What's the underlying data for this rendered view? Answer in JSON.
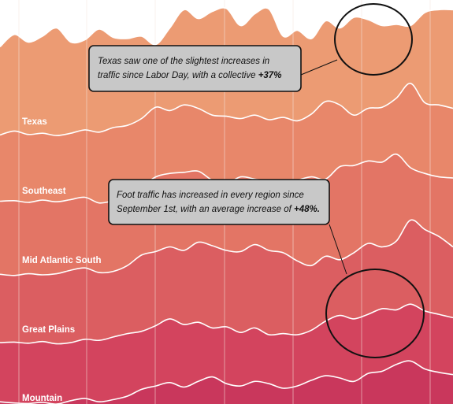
{
  "chart_data": {
    "type": "area",
    "description_style": "stacked ridgeline of foot traffic by region",
    "colors": {
      "band_0": "#ec9b73",
      "band_1": "#e8876a",
      "band_2": "#e37565",
      "band_3": "#db5e61",
      "band_4": "#d3445e",
      "band_5": "#c9375c",
      "gridline": "#f6e3dc",
      "label": "#ffffff"
    },
    "series": [
      {
        "name": "",
        "values": [
          0.34,
          0.55,
          0.42,
          0.52,
          0.66,
          0.42,
          0.46,
          0.64,
          0.5,
          0.48,
          0.52,
          0.38,
          0.66,
          0.97,
          0.82,
          0.94,
          0.99,
          0.7,
          0.9,
          0.98,
          0.52,
          0.62,
          0.48,
          0.78,
          0.66,
          0.84,
          0.8,
          0.7,
          0.72,
          0.7,
          0.92,
          0.97,
          0.97
        ]
      },
      {
        "name": "Texas",
        "values": [
          0.05,
          0.12,
          0.06,
          0.08,
          0.04,
          0.08,
          0.14,
          0.1,
          0.18,
          0.22,
          0.34,
          0.54,
          0.48,
          0.58,
          0.52,
          0.4,
          0.38,
          0.34,
          0.4,
          0.32,
          0.36,
          0.3,
          0.42,
          0.64,
          0.58,
          0.4,
          0.52,
          0.54,
          0.7,
          0.96,
          0.62,
          0.58,
          0.52
        ]
      },
      {
        "name": "Southeast",
        "values": [
          0.09,
          0.1,
          0.07,
          0.11,
          0.08,
          0.12,
          0.16,
          0.06,
          0.1,
          0.18,
          0.34,
          0.52,
          0.58,
          0.6,
          0.62,
          0.46,
          0.4,
          0.52,
          0.48,
          0.44,
          0.4,
          0.46,
          0.52,
          0.48,
          0.7,
          0.72,
          0.8,
          0.78,
          0.92,
          0.68,
          0.58,
          0.52,
          0.5
        ]
      },
      {
        "name": "Mid Atlantic South",
        "values": [
          0.05,
          0.03,
          0.06,
          0.04,
          0.06,
          0.12,
          0.16,
          0.08,
          0.1,
          0.2,
          0.38,
          0.44,
          0.52,
          0.46,
          0.6,
          0.54,
          0.46,
          0.44,
          0.56,
          0.46,
          0.42,
          0.28,
          0.2,
          0.36,
          0.3,
          0.42,
          0.58,
          0.52,
          0.62,
          0.98,
          0.82,
          0.7,
          0.52
        ]
      },
      {
        "name": "Great Plains",
        "values": [
          0.04,
          0.05,
          0.03,
          0.06,
          0.02,
          0.04,
          0.1,
          0.08,
          0.14,
          0.2,
          0.24,
          0.34,
          0.46,
          0.36,
          0.4,
          0.3,
          0.32,
          0.22,
          0.3,
          0.18,
          0.2,
          0.18,
          0.26,
          0.42,
          0.52,
          0.46,
          0.54,
          0.64,
          0.62,
          0.72,
          0.6,
          0.54,
          0.48
        ]
      },
      {
        "name": "Mountain",
        "values": [
          0.08,
          0.06,
          0.05,
          0.07,
          0.04,
          0.1,
          0.14,
          0.08,
          0.12,
          0.18,
          0.3,
          0.36,
          0.42,
          0.34,
          0.44,
          0.52,
          0.4,
          0.36,
          0.44,
          0.4,
          0.32,
          0.36,
          0.46,
          0.54,
          0.5,
          0.44,
          0.58,
          0.62,
          0.74,
          0.8,
          0.66,
          0.6,
          0.56
        ]
      }
    ],
    "grid": true,
    "legend": "none",
    "annotations": [
      {
        "text_main": "Texas saw one of the slightest increases in traffic since Labor Day, with a collective ",
        "text_strong": "+37%"
      },
      {
        "text_main": "Foot traffic has increased in every region since September 1st, with an average increase of ",
        "text_strong": "+48%."
      }
    ]
  }
}
